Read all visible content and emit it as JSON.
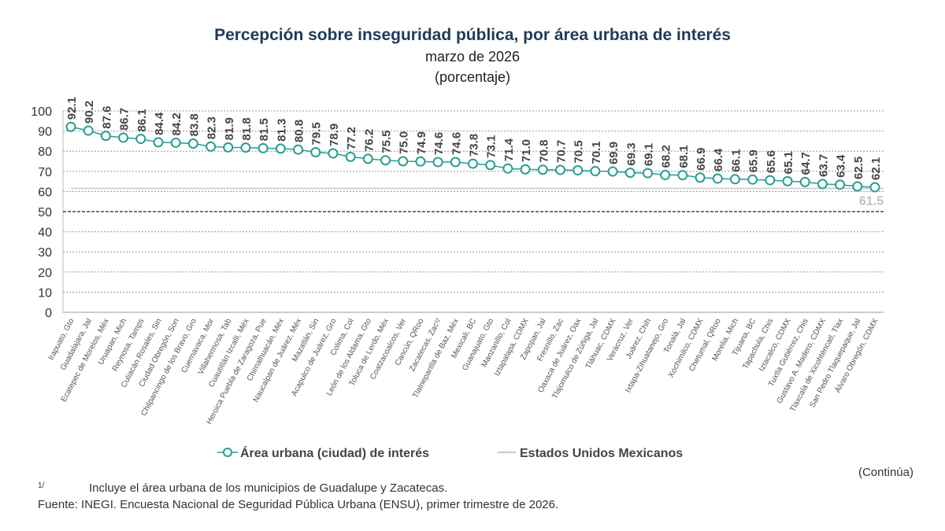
{
  "chart_data": {
    "type": "line",
    "title": "Percepción sobre inseguridad pública, por área urbana de interés",
    "subtitle": "marzo de 2026",
    "unit": "(porcentaje)",
    "ylim": [
      0,
      100
    ],
    "yticks": [
      0,
      10,
      20,
      30,
      40,
      50,
      60,
      70,
      80,
      90,
      100
    ],
    "grid": true,
    "legend_position": "bottom",
    "categories": [
      "Irapuato, Gto",
      "Guadalajara, Jal",
      "Ecatepec de Morelos, Méx",
      "Uruapan, Mich",
      "Reynosa, Tamps",
      "Culiacán Rosales, Sin",
      "Ciudad Obregón, Son",
      "Chilpancingo de los Bravo, Gro",
      "Cuernavaca, Mor",
      "Villahermosa, Tab",
      "Cuautitlán Izcalli, Méx",
      "Heroica Puebla de Zaragoza, Pue",
      "Chimalhuacán, Méx",
      "Naucalpan de Juárez, Méx",
      "Mazatlán, Sin",
      "Acapulco de Juárez, Gro",
      "Colima, Col",
      "León de los Aldama, Gto",
      "Toluca de Lerdo, Méx",
      "Coatzacoalcos, Ver",
      "Cancún, QRoo",
      "Zacatecas, Zac¹/",
      "Tlalnepantla de Baz, Méx",
      "Mexicali, BC",
      "Guanajuato, Gto",
      "Manzanillo, Col",
      "Iztapalapa, CDMX",
      "Zapopan, Jal",
      "Fresnillo, Zac",
      "Oaxaca de Juárez, Oax",
      "Tlajomulco de Zúñiga, Jal",
      "Tláhuac, CDMX",
      "Veracruz, Ver",
      "Juárez, Chih",
      "Ixtapa-Zihuatanejo, Gro",
      "Tonalá, Jal",
      "Xochimilco, CDMX",
      "Chetumal, QRoo",
      "Morelia, Mich",
      "Tijuana, BC",
      "Tapachula, Chis",
      "Iztacalco, CDMX",
      "Tuxtla Gutiérrez, Chis",
      "Gustavo A. Madero, CDMX",
      "Tlaxcala de Xicohténcatl, Tlax",
      "San Pedro Tlaquepaque, Jal",
      "Álvaro Obregón, CDMX"
    ],
    "series": [
      {
        "name": "Área urbana (ciudad) de interés",
        "color": "#2a9d8f",
        "values": [
          92.1,
          90.2,
          87.6,
          86.7,
          86.1,
          84.4,
          84.2,
          83.8,
          82.3,
          81.9,
          81.8,
          81.5,
          81.3,
          80.8,
          79.5,
          78.9,
          77.2,
          76.2,
          75.5,
          75.0,
          74.9,
          74.6,
          74.6,
          73.8,
          73.1,
          71.4,
          71.0,
          70.8,
          70.7,
          70.5,
          70.1,
          69.9,
          69.3,
          69.1,
          68.2,
          68.1,
          66.9,
          66.4,
          66.1,
          65.9,
          65.6,
          65.1,
          64.7,
          63.7,
          63.4,
          62.5,
          62.1
        ]
      },
      {
        "name": "Estados Unidos Mexicanos",
        "color": "#c8c8c8",
        "value": 61.5,
        "label": "61.5"
      }
    ],
    "reference_line": {
      "value": 50,
      "style": "dashed",
      "color": "#222"
    }
  },
  "footnote_mark": "1/",
  "footnote": "Incluye el área urbana de los municipios de Guadalupe y Zacatecas.",
  "source": "Fuente: INEGI. Encuesta Nacional de Seguridad Pública Urbana (ENSU), primer trimestre de 2026.",
  "continua": "(Continúa)"
}
